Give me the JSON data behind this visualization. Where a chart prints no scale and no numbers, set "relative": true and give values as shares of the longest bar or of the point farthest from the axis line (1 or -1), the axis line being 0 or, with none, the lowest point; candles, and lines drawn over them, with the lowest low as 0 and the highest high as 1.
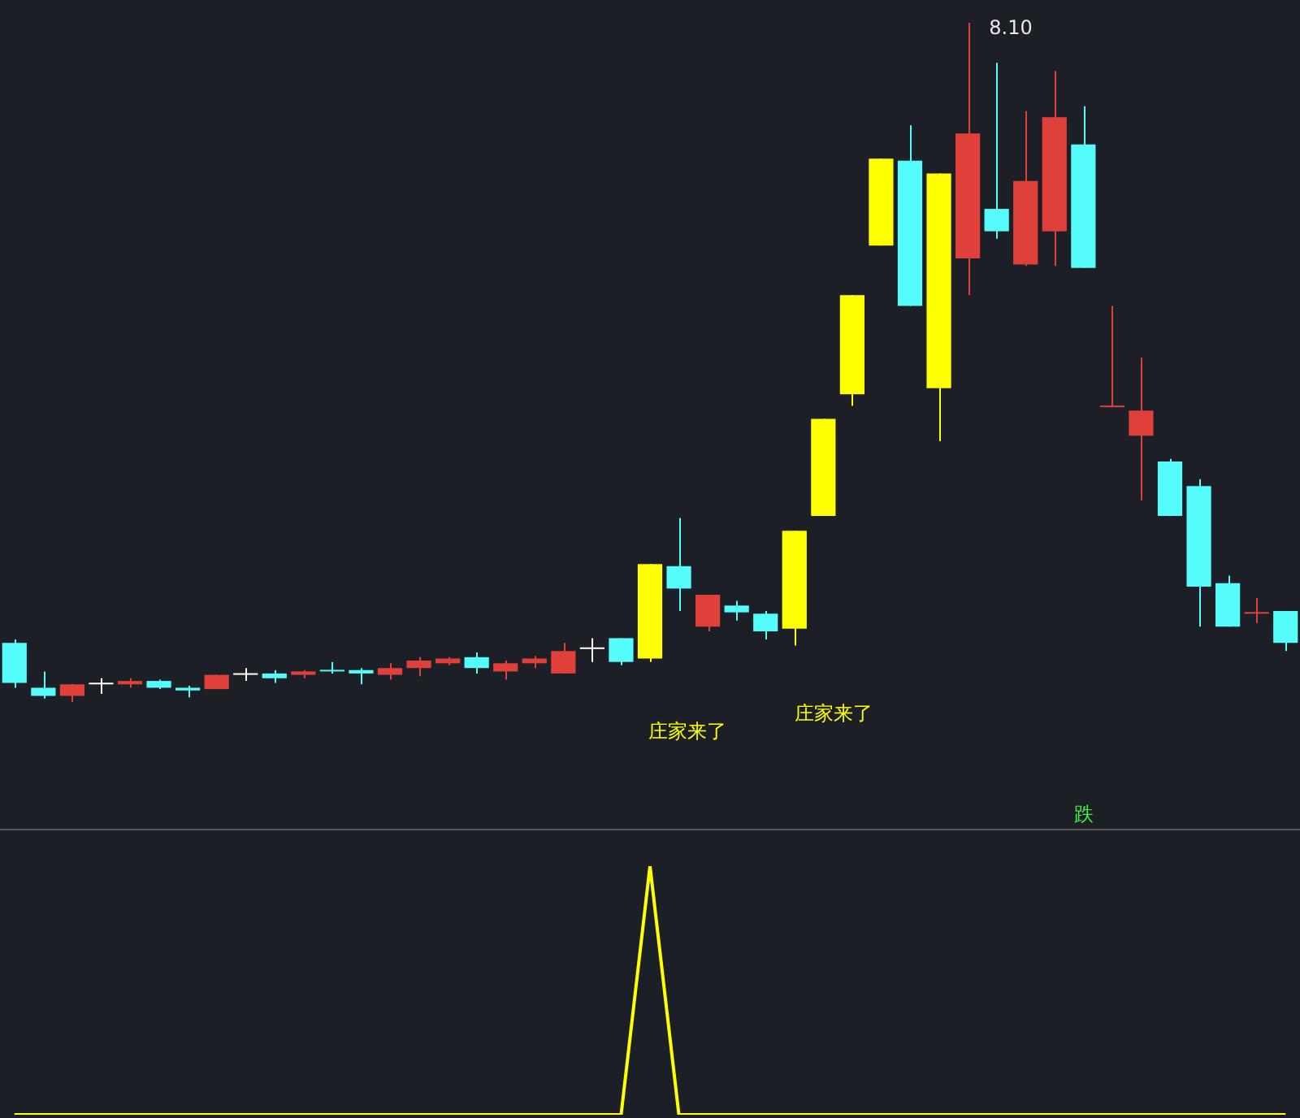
{
  "chart_data": [
    {
      "type": "candlestick",
      "relative": true,
      "tick_labels": false,
      "categories": [
        null,
        null,
        null,
        null,
        null,
        null,
        null,
        null,
        null,
        null,
        null,
        null,
        null,
        null,
        null,
        null,
        null,
        null,
        null,
        null,
        null,
        null,
        null,
        null,
        null,
        null,
        null,
        null,
        null,
        null,
        null,
        null,
        null,
        null,
        null,
        null,
        null,
        null,
        null,
        null,
        null,
        null,
        null,
        null,
        null
      ],
      "ohlc": [
        [
          0.087,
          0.092,
          0.021,
          0.028
        ],
        [
          0.021,
          0.045,
          0.005,
          0.009
        ],
        [
          0.009,
          0.026,
          0,
          0.026
        ],
        [
          0.026,
          0.035,
          0.012,
          0.026
        ],
        [
          0.026,
          0.035,
          0.021,
          0.031
        ],
        [
          0.031,
          0.033,
          0.019,
          0.021
        ],
        [
          0.021,
          0.024,
          0.007,
          0.017
        ],
        [
          0.019,
          0.04,
          0.019,
          0.04
        ],
        [
          0.04,
          0.05,
          0.031,
          0.04
        ],
        [
          0.042,
          0.047,
          0.028,
          0.035
        ],
        [
          0.04,
          0.047,
          0.035,
          0.045
        ],
        [
          0.047,
          0.059,
          0.042,
          0.045
        ],
        [
          0.047,
          0.05,
          0.026,
          0.042
        ],
        [
          0.04,
          0.057,
          0.033,
          0.05
        ],
        [
          0.05,
          0.066,
          0.038,
          0.061
        ],
        [
          0.057,
          0.066,
          0.054,
          0.064
        ],
        [
          0.066,
          0.073,
          0.042,
          0.05
        ],
        [
          0.045,
          0.061,
          0.033,
          0.057
        ],
        [
          0.057,
          0.068,
          0.05,
          0.064
        ],
        [
          0.042,
          0.087,
          0.042,
          0.075
        ],
        [
          0.078,
          0.094,
          0.059,
          0.078
        ],
        [
          0.094,
          0.094,
          0.054,
          0.059
        ],
        [
          0.064,
          0.203,
          0.059,
          0.203
        ],
        [
          0.2,
          0.271,
          0.134,
          0.167
        ],
        [
          0.111,
          0.158,
          0.104,
          0.158
        ],
        [
          0.142,
          0.149,
          0.12,
          0.132
        ],
        [
          0.13,
          0.134,
          0.092,
          0.104
        ],
        [
          0.108,
          0.252,
          0.083,
          0.252
        ],
        [
          0.274,
          0.417,
          0.274,
          0.417
        ],
        [
          0.453,
          0.599,
          0.436,
          0.599
        ],
        [
          0.672,
          0.8,
          0.672,
          0.8
        ],
        [
          0.797,
          0.849,
          0.583,
          0.583
        ],
        [
          0.462,
          0.778,
          0.384,
          0.778
        ],
        [
          0.653,
          1,
          0.599,
          0.837
        ],
        [
          0.726,
          0.941,
          0.682,
          0.693
        ],
        [
          0.644,
          0.87,
          0.642,
          0.767
        ],
        [
          0.693,
          0.929,
          0.642,
          0.861
        ],
        [
          0.821,
          0.877,
          0.639,
          0.639
        ],
        [
          0.434,
          0.583,
          0.434,
          0.434
        ],
        [
          0.392,
          0.507,
          0.297,
          0.429
        ],
        [
          0.354,
          0.358,
          0.274,
          0.274
        ],
        [
          0.318,
          0.328,
          0.111,
          0.17
        ],
        [
          0.175,
          0.186,
          0.111,
          0.111
        ],
        [
          0.13,
          0.153,
          0.116,
          0.13
        ],
        [
          0.134,
          0.134,
          0.075,
          0.087
        ]
      ],
      "colors": [
        "#54fcfc",
        "#54fcfc",
        "#e0403a",
        "#ffffff",
        "#e0403a",
        "#54fcfc",
        "#54fcfc",
        "#e0403a",
        "#ffffff",
        "#54fcfc",
        "#e0403a",
        "#54fcfc",
        "#54fcfc",
        "#e0403a",
        "#e0403a",
        "#e0403a",
        "#54fcfc",
        "#e0403a",
        "#e0403a",
        "#e0403a",
        "#ffffff",
        "#54fcfc",
        "#ffff00",
        "#54fcfc",
        "#e0403a",
        "#54fcfc",
        "#54fcfc",
        "#ffff00",
        "#ffff00",
        "#ffff00",
        "#ffff00",
        "#54fcfc",
        "#ffff00",
        "#e0403a",
        "#54fcfc",
        "#e0403a",
        "#e0403a",
        "#54fcfc",
        "#e0403a",
        "#e0403a",
        "#54fcfc",
        "#54fcfc",
        "#54fcfc",
        "#e0403a",
        "#54fcfc"
      ],
      "annotations": [
        "8.10",
        "庄家来了",
        "庄家来了",
        "跌"
      ]
    },
    {
      "type": "line",
      "relative": true,
      "tick_labels": false,
      "categories": [
        null,
        null,
        null,
        null,
        null,
        null,
        null,
        null,
        null,
        null,
        null,
        null,
        null,
        null,
        null,
        null,
        null,
        null,
        null,
        null,
        null,
        null,
        null,
        null,
        null,
        null,
        null,
        null,
        null,
        null,
        null,
        null,
        null,
        null,
        null,
        null,
        null,
        null,
        null,
        null,
        null,
        null,
        null,
        null,
        null
      ],
      "series": [
        {
          "color": "#ffff00",
          "values": [
            0,
            0,
            0,
            0,
            0,
            0,
            0,
            0,
            0,
            0,
            0,
            0,
            0,
            0,
            0,
            0,
            0,
            0,
            0,
            0,
            0,
            0,
            1,
            0,
            0,
            0,
            0,
            0,
            0,
            0,
            0,
            0,
            0,
            0,
            0,
            0,
            0,
            0,
            0,
            0,
            0,
            0,
            0,
            0,
            0
          ]
        }
      ]
    }
  ]
}
